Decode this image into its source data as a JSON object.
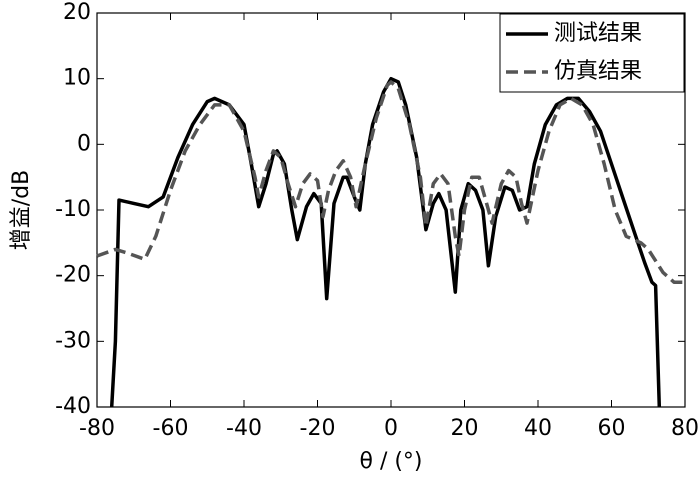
{
  "chart_data": {
    "type": "line",
    "xlabel": "θ / (°)",
    "ylabel": "增益/dB",
    "xlim": [
      -80,
      80
    ],
    "xticks": [
      -80,
      -60,
      -40,
      -20,
      0,
      20,
      40,
      60,
      80
    ],
    "ylim": [
      -40,
      20
    ],
    "yticks": [
      -40,
      -30,
      -20,
      -10,
      0,
      10,
      20
    ],
    "grid": false,
    "legend": "upper right",
    "series": [
      {
        "name": "测试结果",
        "color": "#000000",
        "dash": "solid",
        "x": [
          -76,
          -75,
          -74,
          -70,
          -66,
          -62,
          -58,
          -54,
          -50,
          -48,
          -44,
          -40,
          -38,
          -36,
          -34,
          -32,
          -31,
          -29,
          -27,
          -25.5,
          -23,
          -21,
          -19,
          -17.5,
          -15.5,
          -13,
          -12,
          -10,
          -8.5,
          -7,
          -5,
          -2,
          0,
          2,
          4,
          7,
          9.5,
          11.5,
          13,
          15,
          17.5,
          19,
          21,
          23,
          25,
          26.5,
          28.5,
          31,
          33,
          35,
          37,
          39,
          42,
          45,
          48,
          51,
          54,
          57,
          60,
          63,
          66,
          69,
          71,
          72,
          73
        ],
        "values": [
          -40,
          -30,
          -8.5,
          -9,
          -9.5,
          -8,
          -2,
          3,
          6.5,
          7,
          6,
          3,
          -3,
          -9.5,
          -6,
          -1.5,
          -1,
          -3,
          -10,
          -14.5,
          -9.5,
          -7.5,
          -9,
          -23.5,
          -9,
          -5,
          -5,
          -8,
          -10,
          -3,
          3,
          8,
          10,
          9.5,
          6,
          -2,
          -13,
          -9,
          -7.5,
          -10,
          -22.5,
          -10,
          -6,
          -7,
          -10,
          -18.5,
          -11,
          -6.5,
          -7,
          -10,
          -9.5,
          -3,
          3,
          6,
          7,
          7,
          5,
          2,
          -3,
          -8,
          -13,
          -18,
          -21,
          -21.5,
          -40
        ]
      },
      {
        "name": "仿真结果",
        "color": "#555555",
        "dash": "dashed",
        "x": [
          -80,
          -75,
          -72,
          -67,
          -64,
          -60,
          -56,
          -52,
          -48,
          -44,
          -40,
          -37,
          -36,
          -34,
          -32,
          -30,
          -28,
          -26,
          -24,
          -22,
          -20,
          -18.5,
          -17,
          -15,
          -13,
          -11,
          -9.5,
          -7,
          -4,
          -1,
          0,
          2,
          5,
          8,
          9.5,
          11.5,
          13.5,
          15.5,
          17.5,
          18.5,
          20,
          22,
          24,
          26,
          27.5,
          30,
          32,
          34,
          35.5,
          37,
          40,
          43,
          46,
          49,
          52,
          55,
          58,
          61,
          64,
          66,
          68,
          70,
          74,
          77,
          80
        ],
        "values": [
          -17,
          -16,
          -16.5,
          -17.5,
          -14,
          -7,
          -1,
          3,
          6,
          6,
          2,
          -5,
          -8,
          -4,
          -1,
          -2,
          -6,
          -9.5,
          -6,
          -4.5,
          -5.5,
          -11,
          -7,
          -4,
          -2.5,
          -5,
          -9.5,
          -3,
          4,
          9,
          9.5,
          8.5,
          3,
          -5,
          -12.5,
          -6,
          -4.5,
          -6,
          -14,
          -17,
          -10,
          -5,
          -5,
          -9,
          -12,
          -6,
          -4,
          -5,
          -9,
          -12,
          -4,
          2,
          6,
          7,
          6,
          3,
          -3,
          -10,
          -14,
          -14.5,
          -15,
          -16,
          -19.5,
          -21,
          -21
        ]
      }
    ]
  }
}
